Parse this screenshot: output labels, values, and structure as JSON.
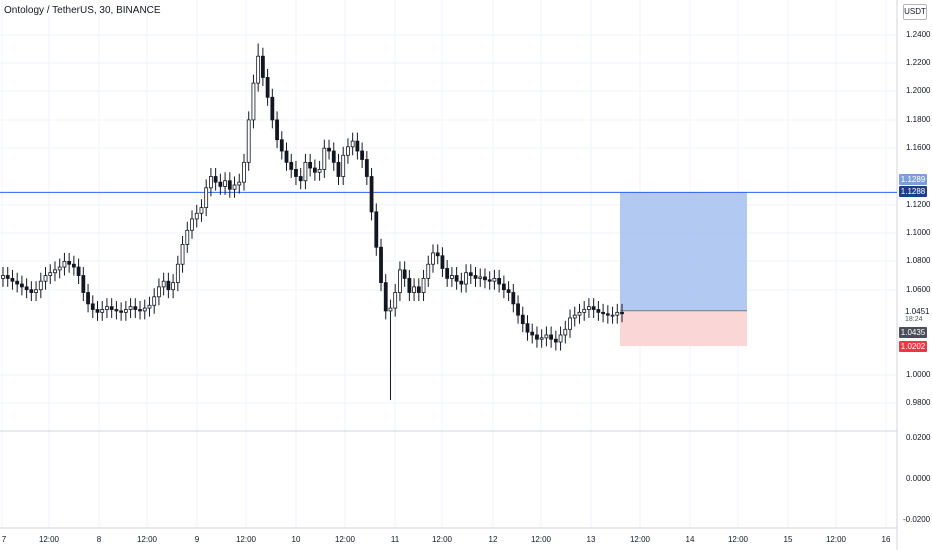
{
  "header": {
    "symbol_title": "Ontology / TetherUS, 30, BINANCE",
    "currency": "USDT"
  },
  "chart_data": {
    "type": "candlestick",
    "title": "Ontology / TetherUS, 30, BINANCE",
    "xlabel": "",
    "ylabel": "",
    "grid": true,
    "colors": {
      "candle": "#131722",
      "target_line": "#2962ff",
      "profit_zone": "#a4bfee",
      "stop_zone": "#fbd2d2",
      "stop_badge": "#f23645",
      "price_badge": "#131722",
      "target_badge": "#2962ff"
    },
    "price_axis": {
      "ticks": [
        "1.2400",
        "1.2200",
        "1.2000",
        "1.1800",
        "1.1600",
        "1.1200",
        "1.1000",
        "1.0800",
        "1.0600",
        "1.0000",
        "0.9800"
      ],
      "range": [
        0.965,
        1.27
      ]
    },
    "secondary_axis": {
      "ticks": [
        "0.0200",
        "0.0000",
        "-0.0200"
      ],
      "range": [
        -0.025,
        0.025
      ]
    },
    "time_axis": {
      "ticks": [
        "7",
        "12:00",
        "8",
        "12:00",
        "9",
        "12:00",
        "10",
        "12:00",
        "11",
        "12:00",
        "12",
        "12:00",
        "13",
        "12:00",
        "14",
        "12:00",
        "15",
        "12:00",
        "16"
      ]
    },
    "series": [
      {
        "name": "",
        "close": [
          1.07,
          1.068,
          1.066,
          1.064,
          1.062,
          1.06,
          1.058,
          1.06,
          1.066,
          1.07,
          1.072,
          1.074,
          1.076,
          1.08,
          1.078,
          1.076,
          1.07,
          1.058,
          1.05,
          1.046,
          1.044,
          1.046,
          1.048,
          1.046,
          1.045,
          1.044,
          1.046,
          1.048,
          1.046,
          1.045,
          1.047,
          1.049,
          1.055,
          1.062,
          1.066,
          1.06,
          1.065,
          1.078,
          1.092,
          1.102,
          1.11,
          1.114,
          1.118,
          1.132,
          1.14,
          1.136,
          1.133,
          1.137,
          1.131,
          1.134,
          1.136,
          1.15,
          1.18,
          1.206,
          1.225,
          1.21,
          1.196,
          1.18,
          1.166,
          1.158,
          1.15,
          1.145,
          1.14,
          1.137,
          1.15,
          1.146,
          1.143,
          1.145,
          1.16,
          1.158,
          1.15,
          1.14,
          1.155,
          1.161,
          1.165,
          1.158,
          1.152,
          1.14,
          1.115,
          1.09,
          1.065,
          1.045,
          1.047,
          1.058,
          1.074,
          1.068,
          1.058,
          1.062,
          1.058,
          1.068,
          1.078,
          1.086,
          1.084,
          1.075,
          1.068,
          1.07,
          1.066,
          1.064,
          1.072,
          1.07,
          1.068,
          1.069,
          1.067,
          1.066,
          1.068,
          1.064,
          1.06,
          1.058,
          1.05,
          1.042,
          1.036,
          1.03,
          1.028,
          1.025,
          1.026,
          1.028,
          1.025,
          1.023,
          1.028,
          1.032,
          1.04,
          1.042,
          1.044,
          1.046,
          1.048,
          1.046,
          1.044,
          1.043,
          1.042,
          1.042,
          1.044,
          1.043
        ]
      },
      {
        "name": "",
        "open": [
          1.068,
          1.07,
          1.068,
          1.066,
          1.064,
          1.062,
          1.06,
          1.058,
          1.06,
          1.066,
          1.07,
          1.072,
          1.074,
          1.076,
          1.08,
          1.078,
          1.076,
          1.07,
          1.058,
          1.05,
          1.046,
          1.044,
          1.046,
          1.048,
          1.046,
          1.045,
          1.044,
          1.046,
          1.048,
          1.046,
          1.045,
          1.047,
          1.049,
          1.055,
          1.062,
          1.066,
          1.06,
          1.065,
          1.078,
          1.092,
          1.102,
          1.11,
          1.114,
          1.118,
          1.132,
          1.14,
          1.136,
          1.133,
          1.137,
          1.131,
          1.134,
          1.136,
          1.15,
          1.18,
          1.206,
          1.225,
          1.21,
          1.196,
          1.18,
          1.166,
          1.158,
          1.15,
          1.145,
          1.14,
          1.137,
          1.15,
          1.146,
          1.143,
          1.145,
          1.16,
          1.158,
          1.15,
          1.14,
          1.155,
          1.161,
          1.165,
          1.158,
          1.152,
          1.14,
          1.115,
          1.09,
          1.065,
          1.045,
          1.047,
          1.058,
          1.074,
          1.068,
          1.058,
          1.062,
          1.058,
          1.068,
          1.078,
          1.086,
          1.084,
          1.075,
          1.068,
          1.07,
          1.066,
          1.064,
          1.072,
          1.07,
          1.068,
          1.069,
          1.067,
          1.066,
          1.068,
          1.064,
          1.06,
          1.058,
          1.05,
          1.042,
          1.036,
          1.03,
          1.028,
          1.025,
          1.026,
          1.028,
          1.025,
          1.023,
          1.028,
          1.032,
          1.04,
          1.042,
          1.044,
          1.046,
          1.048,
          1.046,
          1.044,
          1.043,
          1.042,
          1.042,
          1.044
        ]
      }
    ],
    "extremes": {
      "high": 1.234,
      "low": 0.982
    },
    "horizontal_line": 1.1288,
    "position": {
      "entry": 1.0451,
      "target": 1.1289,
      "stop": 1.0202
    },
    "price_labels": {
      "target": "1.1289",
      "line": "1.1288",
      "entry": "1.0451",
      "countdown": "18:24",
      "last": "1.0435",
      "stop": "1.0202"
    }
  }
}
